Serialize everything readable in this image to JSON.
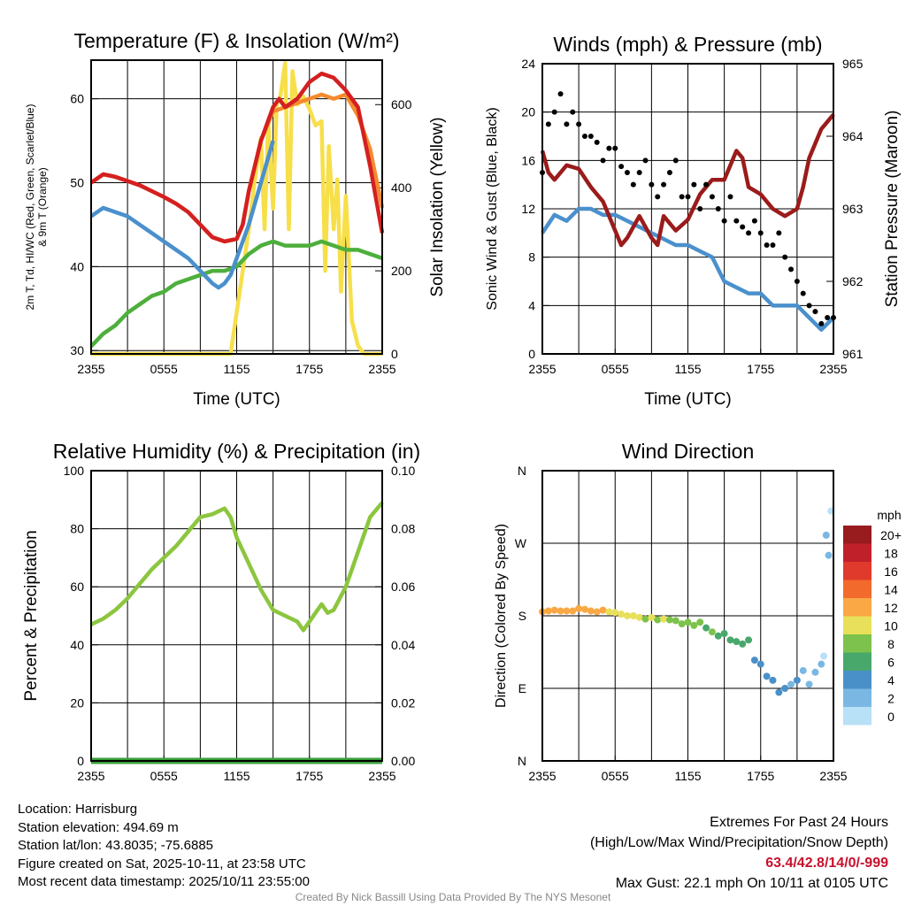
{
  "chart_data": [
    {
      "type": "line",
      "title": "Temperature (F) & Insolation (W/m²)",
      "xlabel": "Time (UTC)",
      "ylabel": "2m T, Td, HI/WC (Red, Green, Scarlet/Blue)",
      "ylabel2": "& 9m T (Orange)",
      "y2label": "Solar Insolation (Yellow)",
      "xticks": [
        "2355",
        "0555",
        "1155",
        "1755",
        "2355"
      ],
      "ylim": [
        29.6,
        64.6
      ],
      "yticks": [
        30,
        40,
        50,
        60
      ],
      "y2lim": [
        0,
        707
      ],
      "y2ticks": [
        0,
        200,
        400,
        600
      ],
      "series": [
        {
          "name": "Solar Insolation",
          "axis": "right",
          "color": "#f7df4a",
          "x": [
            0,
            11.5,
            12,
            12.5,
            13,
            13.5,
            14,
            14.3,
            14.6,
            15,
            15.3,
            15.6,
            16,
            16.3,
            16.6,
            17,
            17.5,
            18,
            18.5,
            19,
            19.3,
            19.6,
            20,
            20.3,
            20.6,
            21,
            21.5,
            22,
            22.5,
            24
          ],
          "y": [
            0,
            0,
            100,
            200,
            300,
            420,
            520,
            300,
            560,
            350,
            600,
            620,
            700,
            300,
            680,
            600,
            620,
            590,
            550,
            560,
            200,
            500,
            300,
            420,
            150,
            380,
            80,
            20,
            0,
            0
          ]
        },
        {
          "name": "Dew Point",
          "axis": "left",
          "color": "#4daf3c",
          "x": [
            0,
            1,
            2,
            3,
            4,
            5,
            6,
            7,
            8,
            9,
            10,
            11,
            12,
            13,
            14,
            15,
            16,
            17,
            18,
            19,
            20,
            21,
            22,
            23,
            24
          ],
          "y": [
            30.5,
            32,
            33,
            34.5,
            35.5,
            36.5,
            37,
            38,
            38.5,
            39,
            39.5,
            39.5,
            40,
            41.5,
            42.5,
            43,
            42.5,
            42.5,
            42.5,
            43,
            42.5,
            42,
            42,
            41.5,
            41
          ]
        },
        {
          "name": "Wind Chill",
          "axis": "left",
          "color": "#4a90cc",
          "x": [
            0,
            1,
            2,
            3,
            4,
            5,
            6,
            7,
            8,
            9,
            10,
            10.5,
            11,
            11.5,
            12,
            13,
            14,
            15
          ],
          "y": [
            46,
            47,
            46.5,
            46,
            45,
            44,
            43,
            42,
            41,
            39.5,
            38,
            37.5,
            38,
            39,
            41,
            45,
            50,
            55
          ]
        },
        {
          "name": "9m Temperature",
          "axis": "left",
          "color": "#f58a2e",
          "x": [
            0,
            1,
            2,
            3,
            4,
            5,
            6,
            7,
            8,
            9,
            10,
            11,
            12,
            12.5,
            13,
            14,
            15,
            16,
            17,
            18,
            19,
            20,
            21,
            22,
            23,
            24
          ],
          "y": [
            50,
            51,
            50.7,
            50.2,
            49.7,
            49,
            48.3,
            47.5,
            46.5,
            45,
            43.5,
            43,
            43.3,
            45,
            49,
            55,
            58.5,
            59,
            59.5,
            60,
            60.5,
            60,
            60.5,
            58,
            54,
            47
          ]
        },
        {
          "name": "2m Temperature",
          "axis": "left",
          "color": "#d42020",
          "x": [
            0,
            1,
            2,
            3,
            4,
            5,
            6,
            7,
            8,
            9,
            10,
            11,
            12,
            12.5,
            13,
            14,
            15,
            15.5,
            16,
            17,
            18,
            19,
            20,
            21,
            22,
            23,
            24
          ],
          "y": [
            50,
            51,
            50.7,
            50.2,
            49.7,
            49,
            48.3,
            47.5,
            46.5,
            45,
            43.5,
            43,
            43.3,
            45,
            49,
            55,
            59,
            60,
            59,
            60,
            62,
            63,
            62.5,
            61,
            59,
            52,
            44
          ]
        }
      ]
    },
    {
      "type": "line",
      "title": "Winds (mph) & Pressure (mb)",
      "xlabel": "Time (UTC)",
      "ylabel": "Sonic Wind & Gust (Blue, Black)",
      "y2label": "Station Pressure (Maroon)",
      "xticks": [
        "2355",
        "0555",
        "1155",
        "1755",
        "2355"
      ],
      "ylim": [
        0,
        24
      ],
      "yticks": [
        0,
        4,
        8,
        12,
        16,
        20,
        24
      ],
      "y2lim": [
        961,
        965
      ],
      "y2ticks": [
        961,
        962,
        963,
        964,
        965
      ],
      "series": [
        {
          "name": "Sonic Wind",
          "axis": "left",
          "color": "#4a90cc",
          "x": [
            0,
            1,
            2,
            3,
            4,
            5,
            6,
            7,
            8,
            9,
            10,
            11,
            12,
            13,
            14,
            15,
            16,
            17,
            18,
            19,
            20,
            21,
            22,
            23,
            24
          ],
          "y": [
            10,
            11.5,
            11,
            12,
            12,
            11.5,
            11.5,
            11,
            10.5,
            10,
            9.5,
            9,
            9,
            8.5,
            8,
            6,
            5.5,
            5,
            5,
            4,
            4,
            4,
            3,
            2,
            3
          ]
        },
        {
          "name": "Station Pressure",
          "axis": "right",
          "color": "#9b1b1b",
          "x": [
            0,
            0.5,
            1,
            2,
            3,
            4,
            5,
            6,
            6.5,
            7,
            8,
            9,
            9.5,
            10,
            11,
            12,
            13,
            14,
            15,
            16,
            16.5,
            17,
            18,
            19,
            20,
            21,
            21.5,
            22,
            23,
            24
          ],
          "y": [
            963.8,
            963.5,
            963.4,
            963.6,
            963.55,
            963.3,
            963.1,
            962.7,
            962.5,
            962.6,
            962.9,
            962.6,
            962.5,
            962.9,
            962.7,
            962.85,
            963.2,
            963.4,
            963.4,
            963.8,
            963.7,
            963.3,
            963.2,
            963.0,
            962.9,
            963.0,
            963.3,
            963.7,
            964.1,
            964.3
          ]
        },
        {
          "name": "Gust",
          "axis": "left",
          "style": "points",
          "color": "#000000",
          "x": [
            0,
            0.5,
            1,
            1.5,
            2,
            2.5,
            3,
            3.5,
            4,
            4.5,
            5,
            5.5,
            6,
            6.5,
            7,
            7.5,
            8,
            8.5,
            9,
            9.5,
            10,
            10.5,
            11,
            11.5,
            12,
            12.5,
            13,
            13.5,
            14,
            14.5,
            15,
            15.5,
            16,
            16.5,
            17,
            17.5,
            18,
            18.5,
            19,
            19.5,
            20,
            20.5,
            21,
            21.5,
            22,
            22.5,
            23,
            23.5,
            24
          ],
          "y": [
            15,
            19,
            20,
            21.5,
            19,
            20,
            19,
            18,
            18,
            17.5,
            16,
            17,
            17,
            15.5,
            15,
            14,
            15,
            16,
            14,
            13,
            14,
            15,
            16,
            13,
            13,
            14,
            12,
            14,
            13,
            12,
            11,
            13,
            11,
            10.5,
            10,
            11,
            10,
            9,
            9,
            10,
            8,
            7,
            6,
            5,
            4,
            3.5,
            2.5,
            3,
            3
          ]
        }
      ]
    },
    {
      "type": "line",
      "title": "Relative Humidity (%) & Precipitation (in)",
      "xlabel": "",
      "ylabel": "Percent & Precipitation",
      "xticks": [
        "2355",
        "0555",
        "1155",
        "1755",
        "2355"
      ],
      "ylim": [
        0,
        100
      ],
      "yticks": [
        0,
        20,
        40,
        60,
        80,
        100
      ],
      "y2lim": [
        0,
        0.1
      ],
      "y2ticks": [
        "0.00",
        "0.02",
        "0.04",
        "0.06",
        "0.08",
        "0.10"
      ],
      "series": [
        {
          "name": "Relative Humidity",
          "axis": "left",
          "color": "#8cc63f",
          "x": [
            0,
            1,
            2,
            3,
            4,
            5,
            6,
            7,
            8,
            9,
            10,
            11,
            11.5,
            12,
            13,
            14,
            15,
            16,
            17,
            17.5,
            18,
            19,
            19.5,
            20,
            21,
            22,
            23,
            24
          ],
          "y": [
            47,
            49,
            52,
            56,
            61,
            66,
            70,
            74,
            79,
            84,
            85,
            87,
            84,
            77,
            68,
            59,
            52,
            50,
            48,
            45,
            48,
            54,
            51,
            52,
            60,
            72,
            84,
            89
          ]
        },
        {
          "name": "Precipitation",
          "axis": "right",
          "color": "#3a9e3a",
          "x": [
            0,
            24
          ],
          "y": [
            0,
            0
          ]
        }
      ]
    },
    {
      "type": "scatter",
      "title": "Wind Direction",
      "ylabel": "Direction (Colored By Speed)",
      "xticks": [
        "2355",
        "0555",
        "1155",
        "1755",
        "2355"
      ],
      "yticks": [
        "N",
        "E",
        "S",
        "W",
        "N"
      ],
      "ylim": [
        0,
        360
      ],
      "legend": {
        "title": "mph",
        "labels": [
          "20+",
          "18",
          "16",
          "14",
          "12",
          "10",
          "8",
          "6",
          "4",
          "2",
          "0"
        ],
        "colors": [
          "#981b1e",
          "#c0202a",
          "#e03a2c",
          "#f26a2c",
          "#f9a845",
          "#e8e05a",
          "#7cc24c",
          "#48a86c",
          "#4a90c8",
          "#7ab8e3",
          "#b8e0f6"
        ]
      },
      "x": [
        0,
        0.5,
        1,
        1.5,
        2,
        2.5,
        3,
        3.5,
        4,
        4.5,
        5,
        5.5,
        6,
        6.5,
        7,
        7.5,
        8,
        8.5,
        9,
        9.5,
        10,
        10.5,
        11,
        11.5,
        12,
        12.5,
        13,
        13.5,
        14,
        14.5,
        15,
        15.5,
        16,
        16.5,
        17,
        17.5,
        18,
        18.5,
        19,
        19.5,
        20,
        20.5,
        21,
        21.5,
        22,
        22.5,
        23,
        23.2,
        23.4,
        23.6,
        23.8
      ],
      "direction": [
        185,
        186,
        187,
        186,
        186,
        186,
        189,
        188,
        186,
        185,
        187,
        185,
        184,
        182,
        180,
        180,
        178,
        176,
        178,
        175,
        176,
        175,
        174,
        170,
        172,
        168,
        172,
        165,
        160,
        155,
        158,
        150,
        148,
        145,
        150,
        125,
        120,
        105,
        100,
        85,
        90,
        95,
        100,
        112,
        95,
        110,
        120,
        130,
        280,
        255,
        310
      ],
      "speed": [
        12,
        12,
        13,
        12,
        12,
        12,
        13,
        13,
        12,
        12,
        12,
        11,
        11,
        11,
        10,
        10,
        10,
        9,
        10,
        9,
        10,
        9,
        9,
        8,
        9,
        8,
        8,
        7,
        8,
        7,
        7,
        6,
        7,
        6,
        6,
        5,
        5,
        4,
        4,
        4,
        4,
        3,
        4,
        3,
        3,
        2,
        2,
        1,
        2,
        3,
        1
      ]
    }
  ],
  "footer": {
    "location": "Location: Harrisburg",
    "elevation": "Station elevation: 494.69 m",
    "latlon": "Station lat/lon: 43.8035; -75.6885",
    "created": "Figure created on Sat, 2025-10-11, at 23:58 UTC",
    "recent": "Most recent data timestamp: 2025/10/11 23:55:00",
    "extremes_title": "Extremes For Past 24 Hours",
    "extremes_sub": "(High/Low/Max Wind/Precipitation/Snow Depth)",
    "extremes_values": "63.4/42.8/14/0/-999",
    "max_gust": "Max Gust: 22.1 mph On 10/11 at 0105 UTC",
    "credit": "Created By Nick Bassill Using Data Provided By The NYS Mesonet"
  }
}
